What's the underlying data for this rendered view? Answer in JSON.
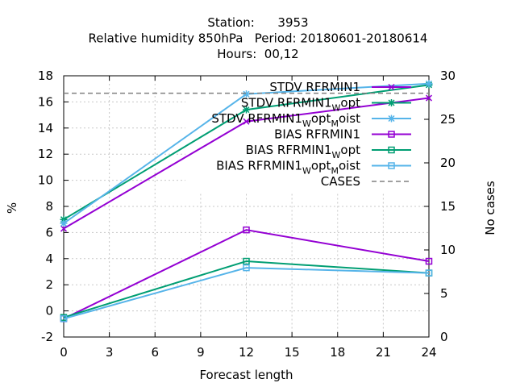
{
  "chart_data": {
    "type": "line",
    "title_lines": [
      "Station:      3953",
      "Relative humidity 850hPa   Period: 20180601-20180614",
      "Hours:  00,12"
    ],
    "xlabel": "Forecast length",
    "ylabel": "%",
    "y2label": "No cases",
    "xlim": [
      0,
      24
    ],
    "ylim": [
      -2,
      18
    ],
    "y2lim": [
      0,
      30
    ],
    "xticks": [
      0,
      3,
      6,
      9,
      12,
      15,
      18,
      21,
      24
    ],
    "yticks": [
      -2,
      0,
      2,
      4,
      6,
      8,
      10,
      12,
      14,
      16,
      18
    ],
    "y2ticks": [
      0,
      5,
      10,
      15,
      20,
      25,
      30
    ],
    "grid": true,
    "legend_position": "top-right",
    "series": [
      {
        "name": "STDV RFRMIN1",
        "sub": "",
        "sub2": "",
        "color": "#9400d3",
        "marker": "x",
        "dash": false,
        "axis": "y1",
        "x": [
          0,
          12,
          24
        ],
        "y": [
          6.3,
          14.5,
          16.3
        ]
      },
      {
        "name": "STDV RFRMIN1",
        "sub": "W",
        "mid": "opt",
        "sub2": "",
        "color": "#009e73",
        "marker": "star",
        "dash": false,
        "axis": "y1",
        "x": [
          0,
          12,
          24
        ],
        "y": [
          7.0,
          15.4,
          17.3
        ]
      },
      {
        "name": "STDV RFRMIN1",
        "sub": "W",
        "mid": "opt",
        "sub2": "M",
        "tail": "oist",
        "color": "#56b4e9",
        "marker": "star",
        "dash": false,
        "axis": "y1",
        "x": [
          0,
          12,
          24
        ],
        "y": [
          6.7,
          16.6,
          17.4
        ]
      },
      {
        "name": "BIAS RFRMIN1",
        "sub": "",
        "sub2": "",
        "color": "#9400d3",
        "marker": "square",
        "dash": false,
        "axis": "y1",
        "x": [
          0,
          12,
          24
        ],
        "y": [
          -0.6,
          6.2,
          3.8
        ]
      },
      {
        "name": "BIAS RFRMIN1",
        "sub": "W",
        "mid": "opt",
        "sub2": "",
        "color": "#009e73",
        "marker": "square",
        "dash": false,
        "axis": "y1",
        "x": [
          0,
          12,
          24
        ],
        "y": [
          -0.5,
          3.8,
          2.9
        ]
      },
      {
        "name": "BIAS RFRMIN1",
        "sub": "W",
        "mid": "opt",
        "sub2": "M",
        "tail": "oist",
        "color": "#56b4e9",
        "marker": "square",
        "dash": false,
        "axis": "y1",
        "x": [
          0,
          12,
          24
        ],
        "y": [
          -0.6,
          3.3,
          2.9
        ]
      },
      {
        "name": "CASES",
        "sub": "",
        "sub2": "",
        "color": "#808080",
        "marker": "none",
        "dash": true,
        "axis": "y2",
        "x": [
          0,
          12,
          24
        ],
        "y": [
          28,
          28,
          28
        ]
      }
    ]
  }
}
